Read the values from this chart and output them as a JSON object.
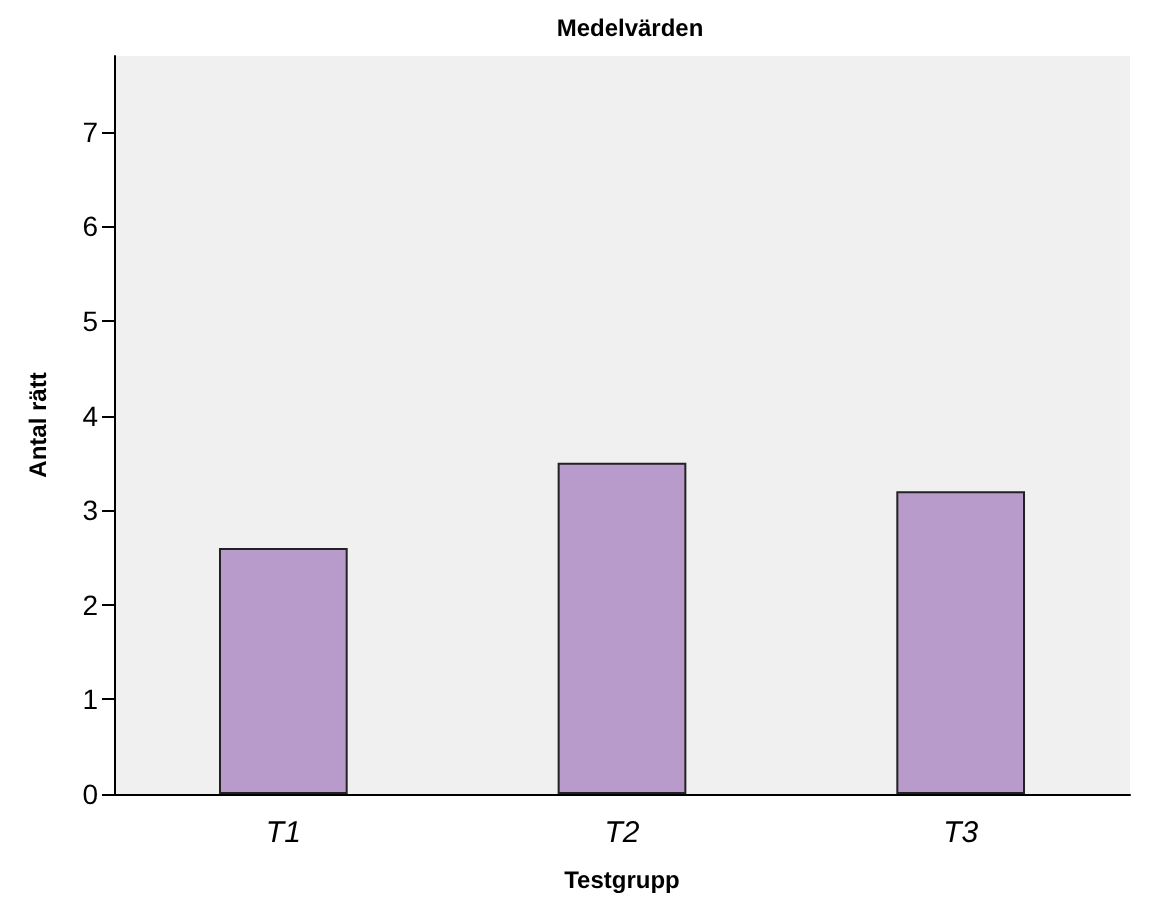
{
  "chart_data": {
    "type": "bar",
    "title": "Medelvärden",
    "xlabel": "Testgrupp",
    "ylabel": "Antal rätt",
    "categories": [
      "T1",
      "T2",
      "T3"
    ],
    "values": [
      2.6,
      3.5,
      3.2
    ],
    "color": "#b89bcb",
    "ylim": [
      0,
      7.8
    ],
    "yticks": [
      0,
      1,
      2,
      3,
      4,
      5,
      6,
      7
    ],
    "grid": false
  }
}
